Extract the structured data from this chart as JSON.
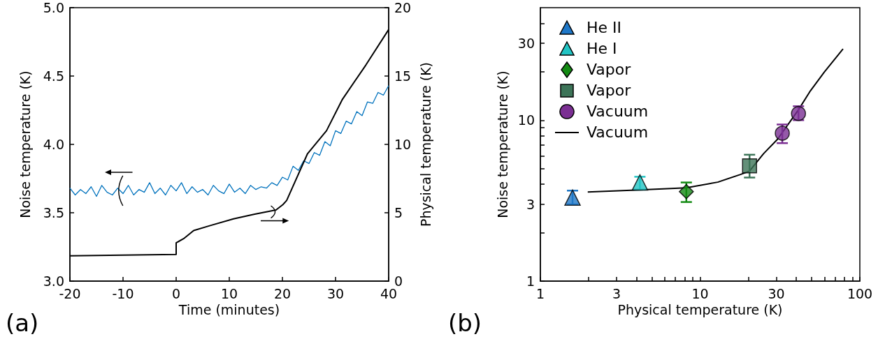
{
  "chart_data": [
    {
      "type": "line",
      "xlabel": "Time (minutes)",
      "ylabel": "Noise temperature (K)",
      "y2label": "Physical temperature (K)",
      "annotations": [
        "(a)"
      ],
      "xlim": [
        -20,
        40
      ],
      "xticks": [
        -20,
        -10,
        0,
        10,
        20,
        30,
        40
      ],
      "ylim": [
        3,
        5
      ],
      "yticks": [
        {
          "value": 3,
          "label": "3.0"
        },
        3.5,
        {
          "value": 4,
          "label": "4.0"
        },
        4.5,
        {
          "value": 5,
          "label": "5.0"
        }
      ],
      "y2lim": [
        0,
        20
      ],
      "y2ticks": [
        0,
        5,
        10,
        15,
        20
      ],
      "grid": false,
      "legend": false,
      "marker": "none",
      "series": [
        {
          "color": "#0072bd",
          "axis": "y",
          "x": [
            -20,
            -19,
            -18,
            -17,
            -16,
            -15,
            -14,
            -13,
            -12,
            -11,
            -10,
            -9,
            -8,
            -7,
            -6,
            -5,
            -4,
            -3,
            -2,
            -1,
            0,
            1,
            2,
            3,
            4,
            5,
            6,
            7,
            8,
            9,
            10,
            11,
            12,
            13,
            14,
            15,
            16,
            17,
            18,
            19,
            20,
            21,
            22,
            23,
            24,
            25,
            26,
            27,
            28,
            29,
            30,
            31,
            32,
            33,
            34,
            35,
            36,
            37,
            38,
            39,
            40
          ],
          "values": [
            3.68,
            3.63,
            3.67,
            3.64,
            3.69,
            3.62,
            3.7,
            3.65,
            3.63,
            3.68,
            3.64,
            3.7,
            3.63,
            3.67,
            3.65,
            3.72,
            3.64,
            3.68,
            3.63,
            3.7,
            3.66,
            3.72,
            3.64,
            3.69,
            3.65,
            3.67,
            3.63,
            3.7,
            3.66,
            3.64,
            3.71,
            3.65,
            3.68,
            3.64,
            3.7,
            3.67,
            3.69,
            3.68,
            3.72,
            3.7,
            3.76,
            3.74,
            3.84,
            3.81,
            3.88,
            3.86,
            3.94,
            3.92,
            4.02,
            3.99,
            4.1,
            4.08,
            4.17,
            4.15,
            4.24,
            4.21,
            4.31,
            4.3,
            4.38,
            4.36,
            4.43
          ]
        },
        {
          "color": "#000000",
          "axis": "y2",
          "x": [
            -20,
            0,
            0,
            1.4,
            3.3,
            6.3,
            10.8,
            14.8,
            18.8,
            20.1,
            20.8,
            24.7,
            28.3,
            31.3,
            35.7,
            40
          ],
          "values": [
            1.85,
            1.95,
            2.8,
            3.1,
            3.7,
            4.05,
            4.55,
            4.9,
            5.2,
            5.6,
            5.9,
            9.3,
            11.0,
            13.3,
            15.8,
            18.4
          ]
        }
      ]
    },
    {
      "type": "scatter",
      "xlabel": "Physical temperature (K)",
      "ylabel": "Noise temperature (K)",
      "annotations": [
        "(b)"
      ],
      "log": "xy",
      "xlim": [
        1,
        100
      ],
      "xticks": [
        1,
        {
          "value": 2,
          "label": null
        },
        3,
        {
          "value": 4,
          "label": null
        },
        {
          "value": 5,
          "label": null
        },
        {
          "value": 6,
          "label": null
        },
        {
          "value": 7,
          "label": null
        },
        {
          "value": 8,
          "label": null
        },
        {
          "value": 9,
          "label": null
        },
        10,
        {
          "value": 20,
          "label": null
        },
        30,
        {
          "value": 40,
          "label": null
        },
        {
          "value": 50,
          "label": null
        },
        {
          "value": 60,
          "label": null
        },
        {
          "value": 70,
          "label": null
        },
        {
          "value": 80,
          "label": null
        },
        {
          "value": 90,
          "label": null
        },
        100
      ],
      "ylim": [
        1,
        50
      ],
      "yticks": [
        1,
        {
          "value": 2,
          "label": null
        },
        3,
        {
          "value": 4,
          "label": null
        },
        {
          "value": 5,
          "label": null
        },
        {
          "value": 6,
          "label": null
        },
        {
          "value": 7,
          "label": null
        },
        {
          "value": 8,
          "label": null
        },
        {
          "value": 9,
          "label": null
        },
        10,
        {
          "value": 20,
          "label": null
        },
        30,
        {
          "value": 40,
          "label": null
        }
      ],
      "grid": false,
      "legend": "top left",
      "series": [
        {
          "name": "He II",
          "color": "#1f78c8",
          "marker": "triangle",
          "x": [
            1.59
          ],
          "values": [
            3.3
          ],
          "errors": [
            [
              3.0,
              3.65
            ]
          ]
        },
        {
          "name": "He I",
          "color": "#22c4c4",
          "marker": "triangle",
          "x": [
            4.2
          ],
          "values": [
            4.1
          ],
          "errors": [
            [
              3.7,
              4.45
            ]
          ]
        },
        {
          "name": "Vapor",
          "color": "#138a13",
          "marker": "diamond",
          "x": [
            8.2
          ],
          "values": [
            3.6
          ],
          "errors": [
            [
              3.1,
              4.1
            ]
          ]
        },
        {
          "name": "Vapor",
          "color": "#3d7458",
          "marker": "square",
          "x": [
            20.4
          ],
          "values": [
            5.2
          ],
          "errors": [
            [
              4.4,
              6.1
            ]
          ]
        },
        {
          "name": "Vacuum",
          "color": "#7b2f93",
          "marker": "circle",
          "x": [
            32.7,
            41.3
          ],
          "values": [
            8.3,
            11.0
          ],
          "errors": [
            [
              7.2,
              9.4
            ],
            [
              10.0,
              12.2
            ]
          ]
        },
        {
          "name": "Vacuum",
          "color": "#000000",
          "type": "line",
          "marker": "none",
          "x": [
            1.98,
            4.2,
            8.2,
            12.9,
            17.9,
            20.4,
            25,
            30.5,
            41.3,
            49,
            59.9,
            78.5
          ],
          "values": [
            3.58,
            3.69,
            3.8,
            4.12,
            4.6,
            4.83,
            6.2,
            7.6,
            11.6,
            15.2,
            19.9,
            27.7
          ]
        }
      ]
    }
  ]
}
